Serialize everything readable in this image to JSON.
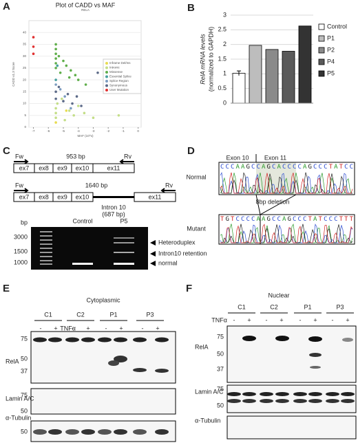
{
  "chart_data": [
    {
      "type": "scatter",
      "panel_label": "A",
      "title": "Plot of CADD vs MAF",
      "subtitle": "RELA",
      "x_label": "MAF (10^x)",
      "y_label": "CADD v1.3 Score",
      "xlim": [
        -7.3,
        0.2
      ],
      "ylim": [
        0,
        45
      ],
      "xticks": [
        -7,
        -6,
        -5,
        -4,
        -3,
        -2,
        -1,
        0
      ],
      "yticks": [
        0,
        5,
        10,
        15,
        20,
        25,
        30,
        35,
        40
      ],
      "legend": "right",
      "series": [
        {
          "name": "Inframe Del/Ins",
          "color": "#e8dc50",
          "x": [
            -5.5,
            -4.8
          ],
          "values": [
            2,
            7
          ]
        },
        {
          "name": "Intronic",
          "color": "#c4de88",
          "x": [
            -5.5,
            -5.5,
            -5.5,
            -5.4,
            -5.1,
            -4.9,
            -4.6,
            -4.3,
            -4.0,
            -3.6,
            -3.0,
            -1.3
          ],
          "values": [
            4,
            6,
            8,
            10,
            12,
            3,
            7,
            5,
            9,
            6,
            4,
            5
          ]
        },
        {
          "name": "Missense",
          "color": "#5fae4a",
          "x": [
            -5.5,
            -5.5,
            -5.5,
            -5.5,
            -5.5,
            -5.5,
            -5.3,
            -5.0,
            -4.8,
            -4.5,
            -4.2,
            -4.0,
            -3.5,
            -5.2,
            -4.6
          ],
          "values": [
            35,
            33,
            31,
            29,
            27,
            25,
            30,
            28,
            26,
            24,
            22,
            20,
            18,
            23,
            21
          ]
        },
        {
          "name": "Essential Splice",
          "color": "#48a0a0",
          "x": [
            -5.5,
            -5.4
          ],
          "values": [
            20,
            26
          ]
        },
        {
          "name": "Splice Region",
          "color": "#7c9cc0",
          "x": [
            -5.5,
            -5.2,
            -4.9,
            -4.5
          ],
          "values": [
            18,
            16,
            13,
            8
          ]
        },
        {
          "name": "Synonymous",
          "color": "#5c6a88",
          "x": [
            -5.5,
            -5.5,
            -5.3,
            -5.0,
            -4.7,
            -4.4,
            -4.1,
            -3.8,
            -2.7
          ],
          "values": [
            15,
            12,
            17,
            11,
            14,
            10,
            13,
            9,
            23
          ]
        },
        {
          "name": "User Mutation",
          "color": "#e03030",
          "x": [
            -7,
            -7,
            -7
          ],
          "values": [
            38,
            34,
            31
          ]
        }
      ]
    },
    {
      "type": "bar",
      "panel_label": "B",
      "y_label": [
        "RelA mRNA levels",
        "(normalized to GAPDH)"
      ],
      "categories": [
        "Control",
        "P1",
        "P2",
        "P4",
        "P5"
      ],
      "values": [
        1.02,
        1.97,
        1.83,
        1.77,
        2.63
      ],
      "error": [
        0.08,
        null,
        null,
        null,
        null
      ],
      "colors": [
        "#ffffff",
        "#bdbdbd",
        "#8a8a8a",
        "#5a5a5a",
        "#333333"
      ],
      "ylim": [
        0,
        3
      ],
      "yticks": [
        0,
        0.5,
        1,
        1.5,
        2,
        2.5,
        3
      ],
      "grid": true
    }
  ],
  "figure": {
    "c": {
      "label": "C",
      "fw": "Fw",
      "rv": "Rv",
      "size1": "953 bp",
      "size2": "1640 bp",
      "exons": [
        "ex7",
        "ex8",
        "ex9",
        "ex10",
        "ex11"
      ],
      "intron": "Intron 10",
      "intron_size": "(687 bp)",
      "gel": {
        "unit": "bp",
        "lanes": [
          "Control",
          "P5"
        ],
        "markers": [
          "3000",
          "1500",
          "1000"
        ],
        "bands": [
          "Heteroduplex",
          "Intron10 retention",
          "normal"
        ]
      }
    },
    "d": {
      "label": "D",
      "exon_left": "Exon 10",
      "exon_right": "Exon 11",
      "normal": "Normal",
      "mutant": "Mutant",
      "deletion": "8bp deletion",
      "normal_seq": "CCCAAGCCAGCACCCCAGCCCTATCC",
      "mutant_seq": "TGTCCCCAAGCCAGCCCTATCCCTTT"
    },
    "e": {
      "label": "E",
      "title": "Cytoplasmic",
      "lanes": [
        "C1",
        "C2",
        "P1",
        "P3"
      ],
      "treatment": "TNFα",
      "signs": [
        "-",
        "+",
        "-",
        "+",
        "-",
        "+",
        "-",
        "+"
      ],
      "rows": [
        "RelA",
        "Lamin A/C",
        "α-Tubulin"
      ],
      "mw_rela": [
        "75",
        "50",
        "37"
      ],
      "mw_lamin": [
        "75",
        "50"
      ],
      "mw_tubulin": [
        "50"
      ]
    },
    "f": {
      "label": "F",
      "title": "Nuclear",
      "lanes": [
        "C1",
        "C2",
        "P1",
        "P3"
      ],
      "treatment": "TNFα",
      "signs": [
        "-",
        "+",
        "-",
        "+",
        "-",
        "+",
        "-",
        "+"
      ],
      "rows": [
        "RelA",
        "Lamin A/C",
        "α-Tubulin"
      ],
      "mw_rela": [
        "75",
        "50",
        "37"
      ],
      "mw_lamin": [
        "75",
        "50"
      ]
    }
  }
}
